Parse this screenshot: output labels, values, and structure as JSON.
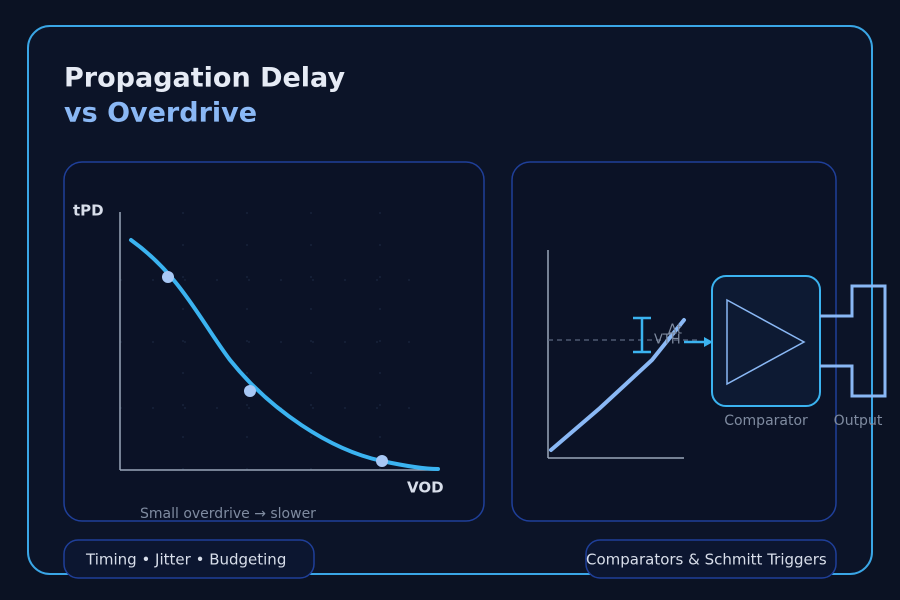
{
  "header": {
    "title": "Propagation Delay",
    "subtitle": "vs Overdrive"
  },
  "plot": {
    "y_label": "tPD",
    "x_label": "VOD",
    "caption": "Small overdrive → slower"
  },
  "diagram": {
    "delay_label": "Δt",
    "threshold_label": "VTH",
    "block_label": "Comparator",
    "output_label": "Output"
  },
  "tags": [
    "Timing • Jitter • Budgeting",
    "Comparators & Schmitt Triggers"
  ]
}
